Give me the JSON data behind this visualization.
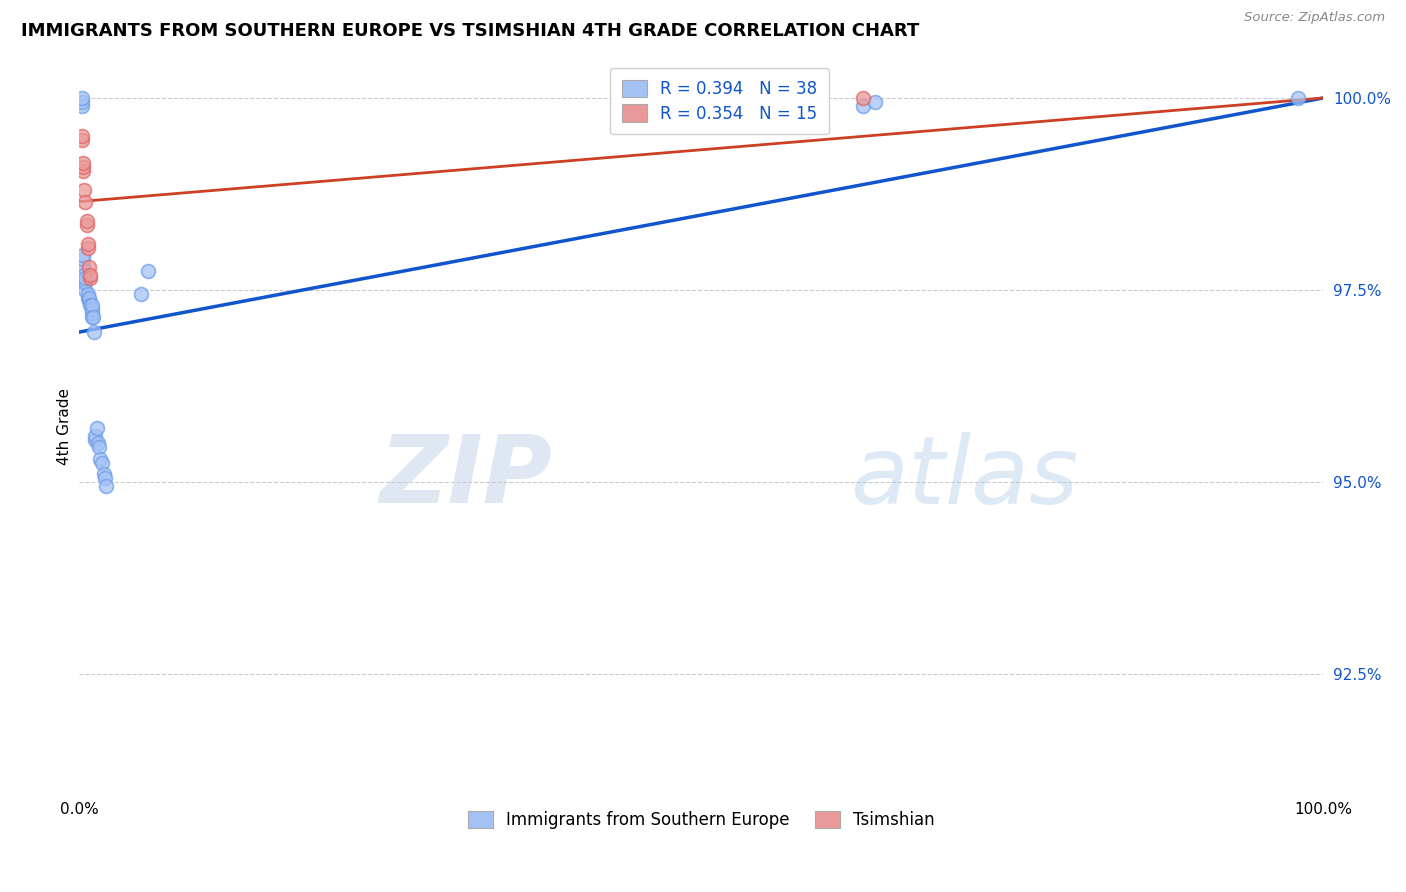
{
  "title": "IMMIGRANTS FROM SOUTHERN EUROPE VS TSIMSHIAN 4TH GRADE CORRELATION CHART",
  "source": "Source: ZipAtlas.com",
  "ylabel": "4th Grade",
  "xlim": [
    0,
    1.0
  ],
  "ylim": [
    0.9095,
    1.005
  ],
  "yticks": [
    0.925,
    0.95,
    0.975,
    1.0
  ],
  "ytick_labels": [
    "92.5%",
    "95.0%",
    "97.5%",
    "100.0%"
  ],
  "xtick_labels": [
    "0.0%",
    "100.0%"
  ],
  "legend_blue_label": "Immigrants from Southern Europe",
  "legend_pink_label": "Tsimshian",
  "watermark_zip": "ZIP",
  "watermark_atlas": "atlas",
  "blue_color": "#a4c2f4",
  "pink_color": "#ea9999",
  "blue_edge_color": "#6d9eeb",
  "pink_edge_color": "#e06666",
  "trend_blue_color": "#1155cc",
  "trend_pink_color": "#cc4125",
  "blue_scatter_x": [
    0.002,
    0.002,
    0.002,
    0.003,
    0.003,
    0.003,
    0.003,
    0.004,
    0.004,
    0.005,
    0.005,
    0.005,
    0.007,
    0.007,
    0.008,
    0.008,
    0.009,
    0.01,
    0.01,
    0.01,
    0.01,
    0.011,
    0.012,
    0.013,
    0.013,
    0.014,
    0.015,
    0.016,
    0.017,
    0.018,
    0.02,
    0.021,
    0.022,
    0.05,
    0.055,
    0.63,
    0.64,
    0.98
  ],
  "blue_scatter_y": [
    0.999,
    0.9995,
    1.0,
    0.977,
    0.978,
    0.979,
    0.9795,
    0.976,
    0.977,
    0.975,
    0.976,
    0.9765,
    0.974,
    0.9745,
    0.9735,
    0.974,
    0.973,
    0.9715,
    0.972,
    0.9725,
    0.973,
    0.9715,
    0.9695,
    0.9555,
    0.956,
    0.957,
    0.955,
    0.9545,
    0.953,
    0.9525,
    0.951,
    0.9505,
    0.9495,
    0.9745,
    0.9775,
    0.999,
    0.9995,
    1.0
  ],
  "pink_scatter_x": [
    0.002,
    0.002,
    0.003,
    0.003,
    0.003,
    0.004,
    0.005,
    0.006,
    0.006,
    0.007,
    0.007,
    0.008,
    0.009,
    0.009,
    0.63
  ],
  "pink_scatter_y": [
    0.9945,
    0.995,
    0.9905,
    0.991,
    0.9915,
    0.988,
    0.9865,
    0.9835,
    0.984,
    0.9805,
    0.981,
    0.978,
    0.9765,
    0.977,
    1.0
  ],
  "blue_trendline_x": [
    0.0,
    1.0
  ],
  "blue_trendline_y": [
    0.9695,
    1.0
  ],
  "pink_trendline_x": [
    0.0,
    1.0
  ],
  "pink_trendline_y": [
    0.9865,
    1.0
  ]
}
